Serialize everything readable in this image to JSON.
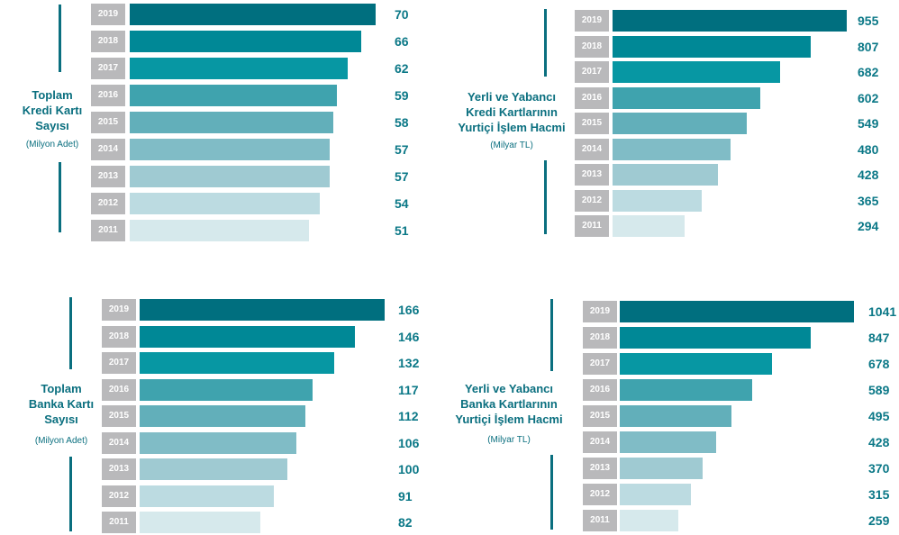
{
  "chart_data": [
    {
      "type": "bar",
      "title": [
        "Toplam",
        "Kredi Kartı",
        "Sayısı"
      ],
      "subtitle": "(Milyon Adet)",
      "categories": [
        "2019",
        "2018",
        "2017",
        "2016",
        "2015",
        "2014",
        "2013",
        "2012",
        "2011"
      ],
      "values": [
        70,
        66,
        62,
        59,
        58,
        57,
        57,
        54,
        51
      ],
      "colors": [
        "#006f7f",
        "#008896",
        "#0797a3",
        "#3fa3ae",
        "#62afba",
        "#80bcc6",
        "#9fcad2",
        "#bcdbe1",
        "#d6e9ec"
      ]
    },
    {
      "type": "bar",
      "title": [
        "Yerli ve Yabancı",
        "Kredi Kartlarının",
        "Yurtiçi İşlem Hacmi"
      ],
      "subtitle": "(Milyar TL)",
      "categories": [
        "2019",
        "2018",
        "2017",
        "2016",
        "2015",
        "2014",
        "2013",
        "2012",
        "2011"
      ],
      "values": [
        955,
        807,
        682,
        602,
        549,
        480,
        428,
        365,
        294
      ],
      "colors": [
        "#006f7f",
        "#008896",
        "#0797a3",
        "#3fa3ae",
        "#62afba",
        "#80bcc6",
        "#9fcad2",
        "#bcdbe1",
        "#d6e9ec"
      ]
    },
    {
      "type": "bar",
      "title": [
        "Toplam",
        "Banka Kartı",
        "Sayısı"
      ],
      "subtitle": "(Milyon Adet)",
      "categories": [
        "2019",
        "2018",
        "2017",
        "2016",
        "2015",
        "2014",
        "2013",
        "2012",
        "2011"
      ],
      "values": [
        166,
        146,
        132,
        117,
        112,
        106,
        100,
        91,
        82
      ],
      "colors": [
        "#006f7f",
        "#008896",
        "#0797a3",
        "#3fa3ae",
        "#62afba",
        "#80bcc6",
        "#9fcad2",
        "#bcdbe1",
        "#d6e9ec"
      ]
    },
    {
      "type": "bar",
      "title": [
        "Yerli ve Yabancı",
        "Banka Kartlarının",
        "Yurtiçi İşlem Hacmi"
      ],
      "subtitle": "(Milyar TL)",
      "categories": [
        "2019",
        "2018",
        "2017",
        "2016",
        "2015",
        "2014",
        "2013",
        "2012",
        "2011"
      ],
      "values": [
        1041,
        847,
        678,
        589,
        495,
        428,
        370,
        315,
        259
      ],
      "colors": [
        "#006f7f",
        "#008896",
        "#0797a3",
        "#3fa3ae",
        "#62afba",
        "#80bcc6",
        "#9fcad2",
        "#bcdbe1",
        "#d6e9ec"
      ]
    }
  ]
}
